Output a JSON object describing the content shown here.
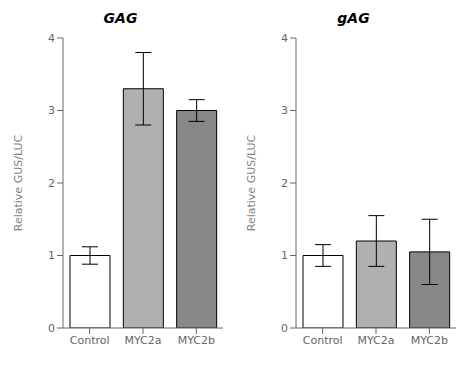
{
  "chart_data": [
    {
      "type": "bar",
      "title": "GAG",
      "y_label": "Relative  GUS/LUC",
      "categories": [
        "Control",
        "MYC2a",
        "MYC2b"
      ],
      "values": [
        1.0,
        3.3,
        3.0
      ],
      "errors": [
        0.12,
        0.5,
        0.15
      ],
      "colors": [
        "white",
        "#b0b0b0",
        "#888888"
      ],
      "ylim": [
        0,
        4
      ],
      "yticks": [
        0,
        1,
        2,
        3,
        4
      ],
      "grid": false
    },
    {
      "type": "bar",
      "title": "gAG",
      "y_label": "Relative  GUS/LUC",
      "categories": [
        "Control",
        "MYC2a",
        "MYC2b"
      ],
      "values": [
        1.0,
        1.2,
        1.05
      ],
      "errors": [
        0.15,
        0.35,
        0.45
      ],
      "colors": [
        "white",
        "#b0b0b0",
        "#888888"
      ],
      "ylim": [
        0,
        4
      ],
      "yticks": [
        0,
        1,
        2,
        3,
        4
      ],
      "grid": false
    }
  ]
}
